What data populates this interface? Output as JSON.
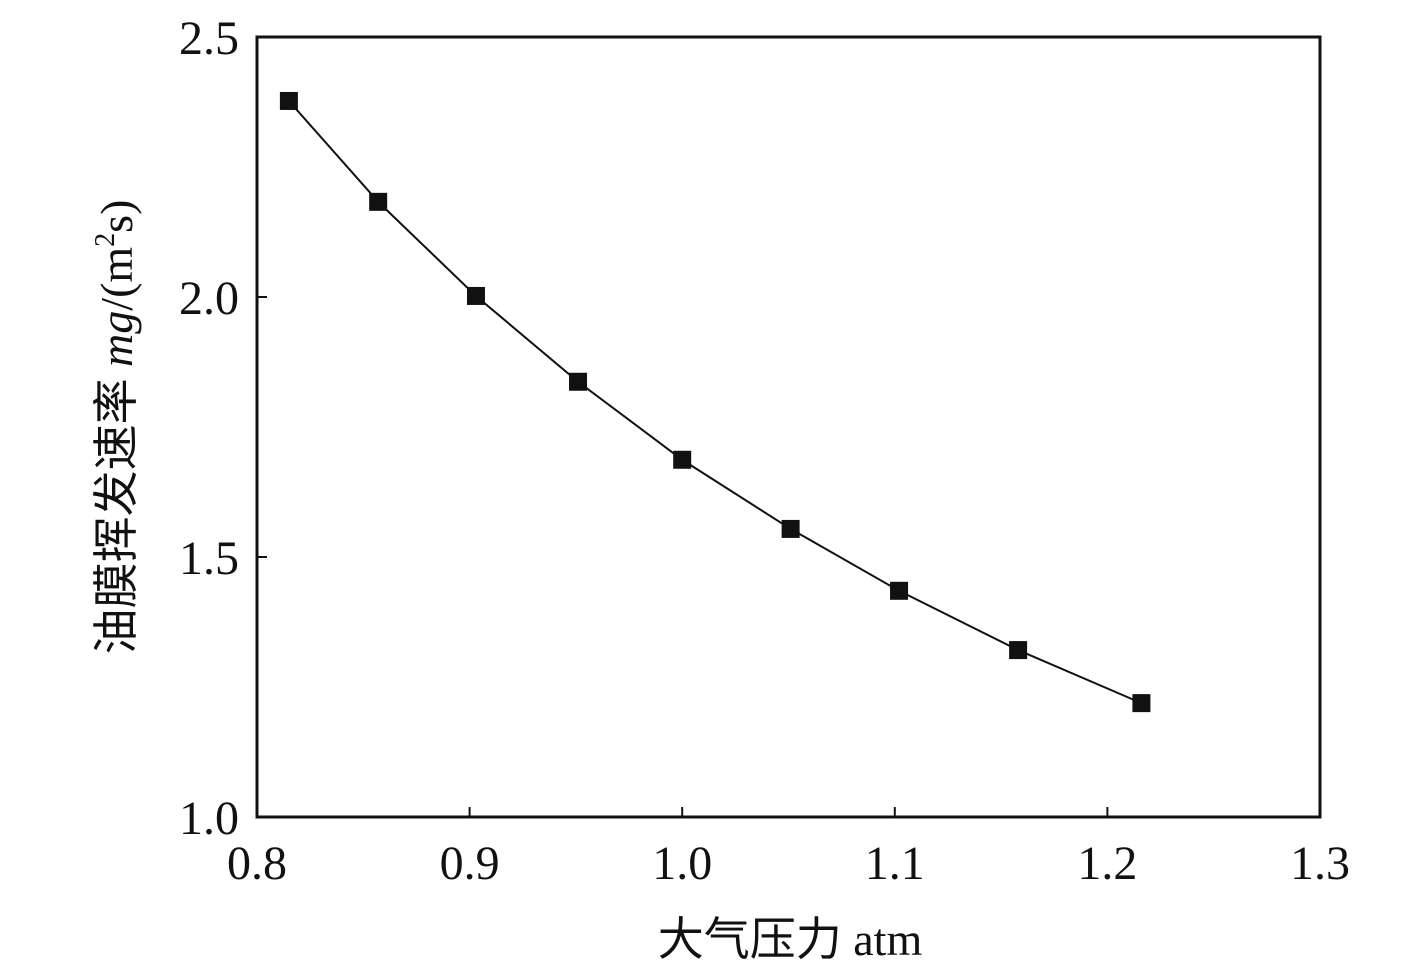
{
  "chart_data": {
    "type": "line",
    "title": "",
    "xlabel": "大气压力 atm",
    "ylabel_prefix": "油膜挥发速率 ",
    "ylabel_unit_italic": "mg",
    "ylabel_unit_rest": "/(m",
    "ylabel_sup": "2",
    "ylabel_end": "s)",
    "xlim": [
      0.8,
      1.3
    ],
    "ylim": [
      1.0,
      2.5
    ],
    "xticks": [
      0.8,
      0.9,
      1.0,
      1.1,
      1.2,
      1.3
    ],
    "xtick_labels": [
      "0.8",
      "0.9",
      "1.0",
      "1.1",
      "1.2",
      "1.3"
    ],
    "yticks": [
      1.0,
      1.5,
      2.0,
      2.5
    ],
    "ytick_labels": [
      "1.0",
      "1.5",
      "2.0",
      "2.5"
    ],
    "grid": false,
    "series": [
      {
        "name": "evaporation rate",
        "marker": "square",
        "color": "#111111",
        "x": [
          0.815,
          0.857,
          0.903,
          0.951,
          1.0,
          1.051,
          1.102,
          1.158,
          1.216
        ],
        "y": [
          2.377,
          2.183,
          2.002,
          1.837,
          1.687,
          1.554,
          1.435,
          1.321,
          1.219
        ]
      }
    ]
  }
}
